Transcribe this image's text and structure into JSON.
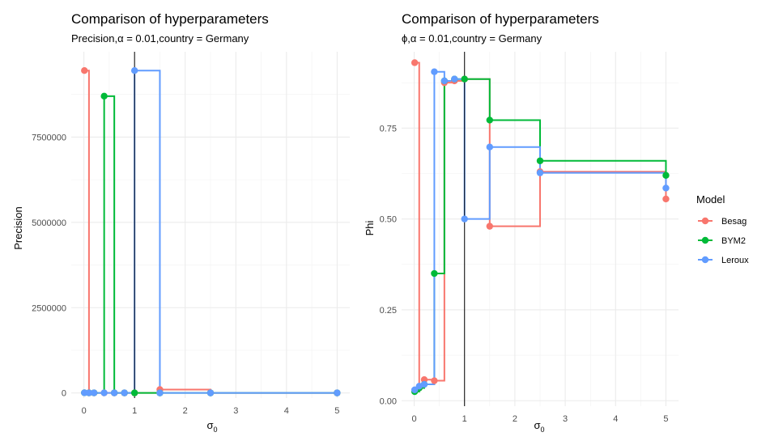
{
  "colors": {
    "Besag": "#F8766D",
    "BYM2": "#00BA38",
    "Leroux": "#619CFF"
  },
  "legend": {
    "title": "Model",
    "placement": "right"
  },
  "chart_data": [
    {
      "type": "line",
      "step": true,
      "title": "Comparison of hyperparameters",
      "subtitle_parts": [
        "Precision,",
        "α",
        " = ",
        "0.01",
        ",country",
        " = ",
        "Germany"
      ],
      "xlabel_main": "σ",
      "xlabel_sub": "0",
      "ylabel": "Precision",
      "xlim": [
        -0.25,
        5.25
      ],
      "ylim": [
        -150000,
        10000000
      ],
      "xticks": [
        0,
        1,
        2,
        3,
        4,
        5
      ],
      "yticks": [
        0,
        2500000,
        5000000,
        7500000
      ],
      "vline": 1,
      "grid": true,
      "series": [
        {
          "name": "Besag",
          "x": [
            0.01,
            0.1,
            0.2,
            0.4,
            0.6,
            0.8,
            1,
            1.5,
            2.5,
            5
          ],
          "y": [
            9450000,
            3000,
            2000,
            2000,
            1500,
            1500,
            1200,
            100000,
            2000,
            1000
          ]
        },
        {
          "name": "BYM2",
          "x": [
            0.01,
            0.1,
            0.2,
            0.4,
            0.6,
            0.8,
            1,
            1.5,
            2.5,
            5
          ],
          "y": [
            5000,
            3000,
            2000,
            8700000,
            2000,
            1500,
            1500,
            1000,
            1000,
            1000
          ]
        },
        {
          "name": "Leroux",
          "x": [
            0.01,
            0.1,
            0.2,
            0.4,
            0.6,
            0.8,
            1,
            1.5,
            2.5,
            5
          ],
          "y": [
            5000,
            3000,
            2000,
            2000,
            1500,
            1500,
            9450000,
            1000,
            1000,
            1000
          ]
        }
      ]
    },
    {
      "type": "line",
      "step": true,
      "title": "Comparison of hyperparameters",
      "subtitle_parts": [
        "ϕ,",
        "α",
        " = ",
        "0.01",
        ",country",
        " = ",
        "Germany"
      ],
      "xlabel_main": "σ",
      "xlabel_sub": "0",
      "ylabel": "Phi",
      "xlim": [
        -0.25,
        5.25
      ],
      "ylim": [
        -0.015,
        0.96
      ],
      "xticks": [
        0,
        1,
        2,
        3,
        4,
        5
      ],
      "yticks": [
        0.0,
        0.25,
        0.5,
        0.75
      ],
      "ytick_labels": [
        "0.00",
        "0.25",
        "0.50",
        "0.75"
      ],
      "vline": 1,
      "grid": true,
      "series": [
        {
          "name": "Besag",
          "x": [
            0.01,
            0.1,
            0.2,
            0.4,
            0.6,
            0.8,
            1,
            1.5,
            2.5,
            5
          ],
          "y": [
            0.93,
            0.035,
            0.058,
            0.055,
            0.875,
            0.88,
            0.885,
            0.48,
            0.63,
            0.555
          ]
        },
        {
          "name": "BYM2",
          "x": [
            0.01,
            0.1,
            0.2,
            0.4,
            0.6,
            0.8,
            1,
            1.5,
            2.5,
            5
          ],
          "y": [
            0.025,
            0.035,
            0.045,
            0.35,
            0.88,
            0.885,
            0.885,
            0.772,
            0.66,
            0.62
          ]
        },
        {
          "name": "Leroux",
          "x": [
            0.01,
            0.1,
            0.2,
            0.4,
            0.6,
            0.8,
            1,
            1.5,
            2.5,
            5
          ],
          "y": [
            0.03,
            0.04,
            0.045,
            0.905,
            0.88,
            0.885,
            0.5,
            0.698,
            0.627,
            0.585
          ]
        }
      ]
    }
  ]
}
